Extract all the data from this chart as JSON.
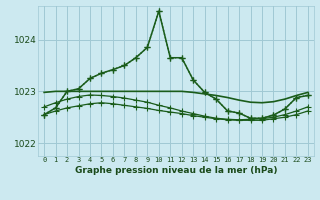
{
  "title": "Graphe pression niveau de la mer (hPa)",
  "background_color": "#cce9f0",
  "grid_color": "#a0c8d4",
  "line_color": "#1a5c1a",
  "xlim": [
    -0.5,
    23.5
  ],
  "ylim": [
    1021.75,
    1024.65
  ],
  "yticks": [
    1022,
    1023,
    1024
  ],
  "x_ticks": [
    0,
    1,
    2,
    3,
    4,
    5,
    6,
    7,
    8,
    9,
    10,
    11,
    12,
    13,
    14,
    15,
    16,
    17,
    18,
    19,
    20,
    21,
    22,
    23
  ],
  "line1_x": [
    0,
    1,
    2,
    3,
    4,
    5,
    6,
    7,
    8,
    9,
    10,
    11,
    12,
    13,
    14,
    15,
    16,
    17,
    18,
    19,
    20,
    21,
    22,
    23
  ],
  "line1_y": [
    1022.55,
    1022.62,
    1022.68,
    1022.72,
    1022.76,
    1022.78,
    1022.76,
    1022.73,
    1022.7,
    1022.67,
    1022.63,
    1022.6,
    1022.57,
    1022.53,
    1022.5,
    1022.47,
    1022.45,
    1022.44,
    1022.44,
    1022.44,
    1022.47,
    1022.5,
    1022.55,
    1022.62
  ],
  "line2_x": [
    0,
    1,
    2,
    3,
    4,
    5,
    6,
    7,
    8,
    9,
    10,
    11,
    12,
    13,
    14,
    15,
    16,
    17,
    18,
    19,
    20,
    21,
    22,
    23
  ],
  "line2_y": [
    1022.7,
    1022.78,
    1022.85,
    1022.9,
    1022.93,
    1022.92,
    1022.9,
    1022.87,
    1022.83,
    1022.79,
    1022.73,
    1022.68,
    1022.62,
    1022.57,
    1022.52,
    1022.48,
    1022.46,
    1022.45,
    1022.46,
    1022.47,
    1022.5,
    1022.55,
    1022.62,
    1022.7
  ],
  "line3_x": [
    0,
    1,
    2,
    3,
    4,
    5,
    6,
    7,
    8,
    9,
    10,
    11,
    12,
    13,
    14,
    15,
    16,
    17,
    18,
    19,
    20,
    21,
    22,
    23
  ],
  "line3_y": [
    1022.55,
    1022.68,
    1023.0,
    1023.05,
    1023.25,
    1023.35,
    1023.42,
    1023.5,
    1023.65,
    1023.85,
    1024.55,
    1023.65,
    1023.65,
    1023.22,
    1022.98,
    1022.85,
    1022.62,
    1022.58,
    1022.48,
    1022.48,
    1022.54,
    1022.66,
    1022.88,
    1022.92
  ],
  "line4_x": [
    0,
    1,
    2,
    3,
    4,
    5,
    6,
    7,
    8,
    9,
    10,
    11,
    12,
    13,
    14,
    15,
    16,
    17,
    18,
    19,
    20,
    21,
    22,
    23
  ],
  "line4_y": [
    1022.98,
    1023.0,
    1023.0,
    1023.0,
    1023.0,
    1023.0,
    1023.0,
    1023.0,
    1023.0,
    1023.0,
    1023.0,
    1023.0,
    1023.0,
    1022.98,
    1022.95,
    1022.92,
    1022.88,
    1022.83,
    1022.79,
    1022.78,
    1022.8,
    1022.85,
    1022.92,
    1022.98
  ]
}
